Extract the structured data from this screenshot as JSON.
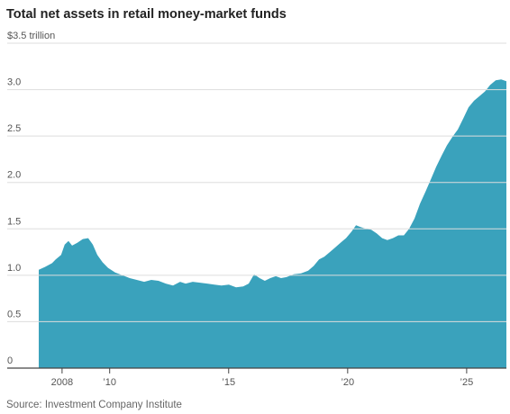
{
  "chart_data": {
    "type": "area",
    "title": "Total net assets in retail money-market funds",
    "source": "Source: Investment Company Institute",
    "color": "#3aa2bc",
    "grid": true,
    "x": [
      2007.02,
      2007.28,
      2007.58,
      2007.73,
      2007.96,
      2008.11,
      2008.27,
      2008.42,
      2008.64,
      2008.87,
      2009.1,
      2009.29,
      2009.48,
      2009.7,
      2009.93,
      2010.23,
      2010.54,
      2010.84,
      2011.14,
      2011.45,
      2011.75,
      2012.05,
      2012.36,
      2012.66,
      2012.96,
      2013.19,
      2013.49,
      2013.8,
      2014.1,
      2014.4,
      2014.7,
      2015.01,
      2015.31,
      2015.61,
      2015.84,
      2016.07,
      2016.3,
      2016.52,
      2016.75,
      2016.98,
      2017.2,
      2017.43,
      2017.73,
      2018.04,
      2018.34,
      2018.57,
      2018.8,
      2019.02,
      2019.25,
      2019.48,
      2019.7,
      2019.93,
      2020.16,
      2020.35,
      2020.54,
      2020.77,
      2020.99,
      2021.22,
      2021.45,
      2021.67,
      2021.9,
      2022.13,
      2022.36,
      2022.58,
      2022.81,
      2023.04,
      2023.27,
      2023.49,
      2023.72,
      2023.95,
      2024.17,
      2024.4,
      2024.63,
      2024.86,
      2025.08,
      2025.31,
      2025.54,
      2025.77,
      2025.99,
      2026.22,
      2026.45,
      2026.67
    ],
    "values": [
      1.06,
      1.09,
      1.13,
      1.17,
      1.22,
      1.33,
      1.37,
      1.32,
      1.35,
      1.39,
      1.4,
      1.33,
      1.22,
      1.14,
      1.08,
      1.03,
      1.0,
      0.97,
      0.95,
      0.93,
      0.95,
      0.94,
      0.91,
      0.89,
      0.93,
      0.91,
      0.93,
      0.92,
      0.91,
      0.9,
      0.89,
      0.9,
      0.87,
      0.88,
      0.91,
      1.01,
      0.97,
      0.94,
      0.97,
      0.99,
      0.97,
      0.98,
      1.01,
      1.02,
      1.05,
      1.1,
      1.17,
      1.2,
      1.25,
      1.3,
      1.35,
      1.4,
      1.47,
      1.54,
      1.52,
      1.5,
      1.49,
      1.45,
      1.4,
      1.38,
      1.4,
      1.43,
      1.43,
      1.5,
      1.61,
      1.77,
      1.9,
      2.03,
      2.17,
      2.29,
      2.4,
      2.49,
      2.57,
      2.69,
      2.81,
      2.88,
      2.93,
      2.98,
      3.05,
      3.1,
      3.11,
      3.09
    ],
    "xlim": [
      2007.02,
      2026.67
    ],
    "xticks": [
      {
        "value": 2008,
        "label": "2008"
      },
      {
        "value": 2010,
        "label": "’10"
      },
      {
        "value": 2015,
        "label": "’15"
      },
      {
        "value": 2020,
        "label": "’20"
      },
      {
        "value": 2025,
        "label": "’25"
      }
    ],
    "ylim": [
      0,
      3.5
    ],
    "yticks": [
      0,
      {
        "value": 0.5,
        "label": "0.5"
      },
      {
        "value": 1,
        "label": "1.0"
      },
      {
        "value": 1.5,
        "label": "1.5"
      },
      {
        "value": 2,
        "label": "2.0"
      },
      {
        "value": 2.5,
        "label": "2.5"
      },
      {
        "value": 3,
        "label": "3.0"
      },
      {
        "value": 3.5,
        "label": "$3.5 trillion"
      }
    ]
  }
}
